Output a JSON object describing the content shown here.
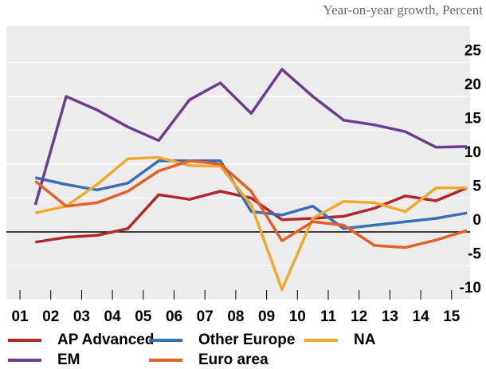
{
  "chart_data": {
    "type": "line",
    "subtitle": "Year-on-year growth, Percent",
    "x": [
      2001.5,
      2002.5,
      2003.5,
      2004.5,
      2005.5,
      2006.5,
      2007.5,
      2008.5,
      2009.5,
      2010.5,
      2011.5,
      2012.5,
      2013.5,
      2014.5,
      2015.5
    ],
    "series": [
      {
        "name": "AP Advanced",
        "color": "#b0282a",
        "values": [
          -1.5,
          -0.8,
          -0.5,
          0.5,
          5.5,
          4.8,
          6,
          5,
          1.8,
          2,
          2.3,
          3.5,
          5.3,
          4.6,
          6.5
        ]
      },
      {
        "name": "Other Europe",
        "color": "#3a6fb5",
        "values": [
          8,
          7,
          6.2,
          7.2,
          10.5,
          10.5,
          10.5,
          3,
          2.5,
          3.8,
          0.5,
          1,
          1.5,
          2,
          2.8
        ]
      },
      {
        "name": "NA",
        "color": "#f0a830",
        "values": [
          2.8,
          3.8,
          7,
          10.8,
          11,
          9.8,
          9.7,
          4,
          -8.5,
          2,
          4.5,
          4.3,
          3,
          6.5,
          6.5
        ]
      },
      {
        "name": "EM",
        "color": "#6a3d8f",
        "values": [
          4,
          20,
          18,
          15.5,
          13.5,
          19.5,
          22,
          17.5,
          24,
          20,
          16.5,
          15.8,
          14.8,
          12.5,
          12.6
        ]
      },
      {
        "name": "Euro area",
        "color": "#e0622a",
        "values": [
          7.5,
          3.8,
          4.3,
          6,
          9,
          10.5,
          10,
          6,
          -1.3,
          1.5,
          1,
          -2,
          -2.3,
          -1.2,
          0.2
        ]
      }
    ],
    "xlim": [
      2000.56,
      2015.6
    ],
    "xticks": [
      {
        "value": 2001,
        "label": "01"
      },
      {
        "value": 2002,
        "label": "02"
      },
      {
        "value": 2003,
        "label": "03"
      },
      {
        "value": 2004,
        "label": "04"
      },
      {
        "value": 2005,
        "label": "05"
      },
      {
        "value": 2006,
        "label": "06"
      },
      {
        "value": 2007,
        "label": "07"
      },
      {
        "value": 2008,
        "label": "08"
      },
      {
        "value": 2009,
        "label": "09"
      },
      {
        "value": 2010,
        "label": "10"
      },
      {
        "value": 2011,
        "label": "11"
      },
      {
        "value": 2012,
        "label": "12"
      },
      {
        "value": 2013,
        "label": "13"
      },
      {
        "value": 2014,
        "label": "14"
      },
      {
        "value": 2015,
        "label": "15"
      }
    ],
    "ylim": [
      -10,
      30
    ],
    "yticks": [
      -10,
      -5,
      0,
      5,
      10,
      15,
      20,
      25
    ],
    "grid": true
  }
}
